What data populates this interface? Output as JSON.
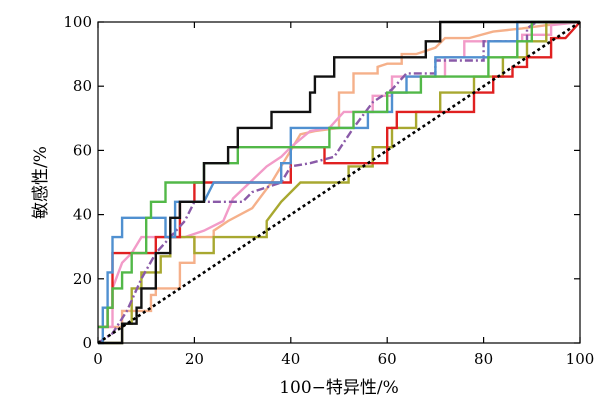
{
  "chart_data": {
    "type": "line",
    "title": "",
    "xlabel": "100−特异性/%",
    "ylabel": "敏感性/%",
    "xlim": [
      0,
      100
    ],
    "ylim": [
      0,
      100
    ],
    "x_ticks": [
      "0",
      "20",
      "40",
      "60",
      "80",
      "100"
    ],
    "y_ticks": [
      "0",
      "20",
      "40",
      "60",
      "80",
      "100"
    ],
    "grid": false,
    "legend": "none",
    "reference_line": {
      "color": "#000000",
      "dash": "dotted",
      "points": [
        [
          0,
          0
        ],
        [
          100,
          100
        ]
      ]
    },
    "series": [
      {
        "color": "#f5b08a",
        "dash": "solid",
        "points": [
          [
            0,
            5
          ],
          [
            5,
            5
          ],
          [
            5,
            10
          ],
          [
            11,
            10
          ],
          [
            11,
            15
          ],
          [
            12,
            15
          ],
          [
            12,
            17
          ],
          [
            17,
            17
          ],
          [
            17,
            25
          ],
          [
            20,
            25
          ],
          [
            20,
            33
          ],
          [
            24,
            33
          ],
          [
            24,
            35
          ],
          [
            27,
            38
          ],
          [
            32,
            42
          ],
          [
            36,
            50
          ],
          [
            38,
            55
          ],
          [
            40,
            60
          ],
          [
            42,
            65
          ],
          [
            45,
            66
          ],
          [
            50,
            67
          ],
          [
            50,
            78
          ],
          [
            53,
            78
          ],
          [
            53,
            84
          ],
          [
            58,
            84
          ],
          [
            58,
            86
          ],
          [
            60,
            87
          ],
          [
            63,
            87
          ],
          [
            63,
            90
          ],
          [
            66,
            90
          ],
          [
            70,
            92
          ],
          [
            72,
            95
          ],
          [
            77,
            95
          ],
          [
            82,
            97
          ],
          [
            88,
            98
          ],
          [
            93,
            99
          ],
          [
            100,
            100
          ]
        ]
      },
      {
        "color": "#f29bc8",
        "dash": "solid",
        "points": [
          [
            0,
            5
          ],
          [
            3,
            5
          ],
          [
            3,
            17
          ],
          [
            5,
            25
          ],
          [
            7,
            28
          ],
          [
            9,
            33
          ],
          [
            18,
            33
          ],
          [
            22,
            35
          ],
          [
            26,
            38
          ],
          [
            28,
            45
          ],
          [
            35,
            55
          ],
          [
            38,
            58
          ],
          [
            40,
            61
          ],
          [
            44,
            66
          ],
          [
            48,
            67
          ],
          [
            51,
            72
          ],
          [
            57,
            72
          ],
          [
            57,
            77
          ],
          [
            61,
            77
          ],
          [
            61,
            83
          ],
          [
            72,
            83
          ],
          [
            72,
            89
          ],
          [
            76,
            89
          ],
          [
            76,
            94
          ],
          [
            88,
            94
          ],
          [
            88,
            96
          ],
          [
            94,
            96
          ],
          [
            94,
            99
          ],
          [
            100,
            100
          ]
        ]
      },
      {
        "color": "#a8a830",
        "dash": "solid",
        "points": [
          [
            0,
            0
          ],
          [
            5,
            0
          ],
          [
            5,
            6
          ],
          [
            7,
            6
          ],
          [
            7,
            17
          ],
          [
            9,
            17
          ],
          [
            9,
            22
          ],
          [
            13,
            22
          ],
          [
            13,
            27
          ],
          [
            15,
            27
          ],
          [
            15,
            33
          ],
          [
            20,
            33
          ],
          [
            20,
            28
          ],
          [
            24,
            28
          ],
          [
            24,
            33
          ],
          [
            35,
            33
          ],
          [
            35,
            38
          ],
          [
            38,
            44
          ],
          [
            42,
            50
          ],
          [
            52,
            50
          ],
          [
            52,
            55
          ],
          [
            57,
            55
          ],
          [
            57,
            61
          ],
          [
            61,
            61
          ],
          [
            61,
            67
          ],
          [
            66,
            67
          ],
          [
            66,
            72
          ],
          [
            71,
            72
          ],
          [
            71,
            78
          ],
          [
            78,
            78
          ],
          [
            78,
            83
          ],
          [
            84,
            83
          ],
          [
            84,
            89
          ],
          [
            89,
            89
          ],
          [
            89,
            94
          ],
          [
            93,
            94
          ],
          [
            93,
            100
          ],
          [
            100,
            100
          ]
        ]
      },
      {
        "color": "#e02020",
        "dash": "solid",
        "points": [
          [
            0,
            5
          ],
          [
            2,
            5
          ],
          [
            2,
            11
          ],
          [
            3,
            11
          ],
          [
            3,
            28
          ],
          [
            12,
            28
          ],
          [
            12,
            33
          ],
          [
            17,
            33
          ],
          [
            17,
            44
          ],
          [
            20,
            44
          ],
          [
            20,
            50
          ],
          [
            40,
            50
          ],
          [
            40,
            61
          ],
          [
            47,
            61
          ],
          [
            47,
            56
          ],
          [
            52,
            56
          ],
          [
            60,
            56
          ],
          [
            60,
            67
          ],
          [
            62,
            67
          ],
          [
            62,
            72
          ],
          [
            78,
            72
          ],
          [
            78,
            78
          ],
          [
            82,
            78
          ],
          [
            82,
            83
          ],
          [
            86,
            83
          ],
          [
            86,
            86
          ],
          [
            89,
            86
          ],
          [
            89,
            89
          ],
          [
            94,
            89
          ],
          [
            94,
            95
          ],
          [
            97,
            95
          ],
          [
            100,
            100
          ]
        ]
      },
      {
        "color": "#8a5aa8",
        "dash": "dashdot",
        "points": [
          [
            0,
            0
          ],
          [
            3,
            3
          ],
          [
            6,
            10
          ],
          [
            9,
            20
          ],
          [
            12,
            28
          ],
          [
            15,
            33
          ],
          [
            18,
            38
          ],
          [
            20,
            44
          ],
          [
            27,
            44
          ],
          [
            30,
            44
          ],
          [
            32,
            47
          ],
          [
            38,
            50
          ],
          [
            40,
            55
          ],
          [
            44,
            56
          ],
          [
            49,
            58
          ],
          [
            53,
            67
          ],
          [
            57,
            75
          ],
          [
            61,
            79
          ],
          [
            64,
            84
          ],
          [
            70,
            84
          ],
          [
            70,
            88
          ],
          [
            80,
            88
          ],
          [
            80,
            94
          ],
          [
            89,
            94
          ],
          [
            89,
            98
          ],
          [
            91,
            100
          ],
          [
            100,
            100
          ]
        ]
      },
      {
        "color": "#5090d0",
        "dash": "solid",
        "points": [
          [
            0,
            0
          ],
          [
            1,
            0
          ],
          [
            1,
            11
          ],
          [
            2,
            11
          ],
          [
            2,
            22
          ],
          [
            3,
            22
          ],
          [
            3,
            33
          ],
          [
            5,
            33
          ],
          [
            5,
            39
          ],
          [
            14,
            39
          ],
          [
            14,
            33
          ],
          [
            16,
            33
          ],
          [
            16,
            44
          ],
          [
            22,
            44
          ],
          [
            24,
            50
          ],
          [
            38,
            50
          ],
          [
            38,
            56
          ],
          [
            40,
            56
          ],
          [
            40,
            67
          ],
          [
            56,
            67
          ],
          [
            56,
            72
          ],
          [
            61,
            72
          ],
          [
            61,
            78
          ],
          [
            64,
            78
          ],
          [
            64,
            83
          ],
          [
            70,
            83
          ],
          [
            70,
            89
          ],
          [
            81,
            89
          ],
          [
            81,
            94
          ],
          [
            87,
            94
          ],
          [
            87,
            100
          ],
          [
            100,
            100
          ]
        ]
      },
      {
        "color": "#52b848",
        "dash": "solid",
        "points": [
          [
            0,
            5
          ],
          [
            2,
            5
          ],
          [
            2,
            11
          ],
          [
            3,
            11
          ],
          [
            3,
            17
          ],
          [
            5,
            17
          ],
          [
            5,
            22
          ],
          [
            7,
            22
          ],
          [
            7,
            28
          ],
          [
            10,
            28
          ],
          [
            10,
            39
          ],
          [
            11,
            39
          ],
          [
            11,
            44
          ],
          [
            14,
            44
          ],
          [
            14,
            50
          ],
          [
            22,
            50
          ],
          [
            22,
            56
          ],
          [
            29,
            56
          ],
          [
            29,
            61
          ],
          [
            48,
            61
          ],
          [
            48,
            67
          ],
          [
            53,
            67
          ],
          [
            53,
            72
          ],
          [
            60,
            72
          ],
          [
            60,
            78
          ],
          [
            67,
            78
          ],
          [
            67,
            83
          ],
          [
            81,
            83
          ],
          [
            81,
            89
          ],
          [
            87,
            89
          ],
          [
            87,
            94
          ],
          [
            90,
            94
          ],
          [
            90,
            100
          ],
          [
            100,
            100
          ]
        ]
      },
      {
        "color": "#111111",
        "dash": "solid",
        "points": [
          [
            0,
            0
          ],
          [
            5,
            0
          ],
          [
            5,
            6
          ],
          [
            8,
            6
          ],
          [
            8,
            11
          ],
          [
            9,
            11
          ],
          [
            9,
            17
          ],
          [
            12,
            17
          ],
          [
            12,
            28
          ],
          [
            15,
            28
          ],
          [
            15,
            39
          ],
          [
            17,
            39
          ],
          [
            17,
            44
          ],
          [
            22,
            44
          ],
          [
            22,
            56
          ],
          [
            27,
            56
          ],
          [
            27,
            61
          ],
          [
            29,
            61
          ],
          [
            29,
            67
          ],
          [
            36,
            67
          ],
          [
            36,
            72
          ],
          [
            44,
            72
          ],
          [
            44,
            78
          ],
          [
            45,
            78
          ],
          [
            45,
            83
          ],
          [
            49,
            83
          ],
          [
            49,
            89
          ],
          [
            68,
            89
          ],
          [
            68,
            94
          ],
          [
            71,
            94
          ],
          [
            71,
            100
          ],
          [
            74,
            100
          ],
          [
            100,
            100
          ]
        ]
      }
    ]
  }
}
